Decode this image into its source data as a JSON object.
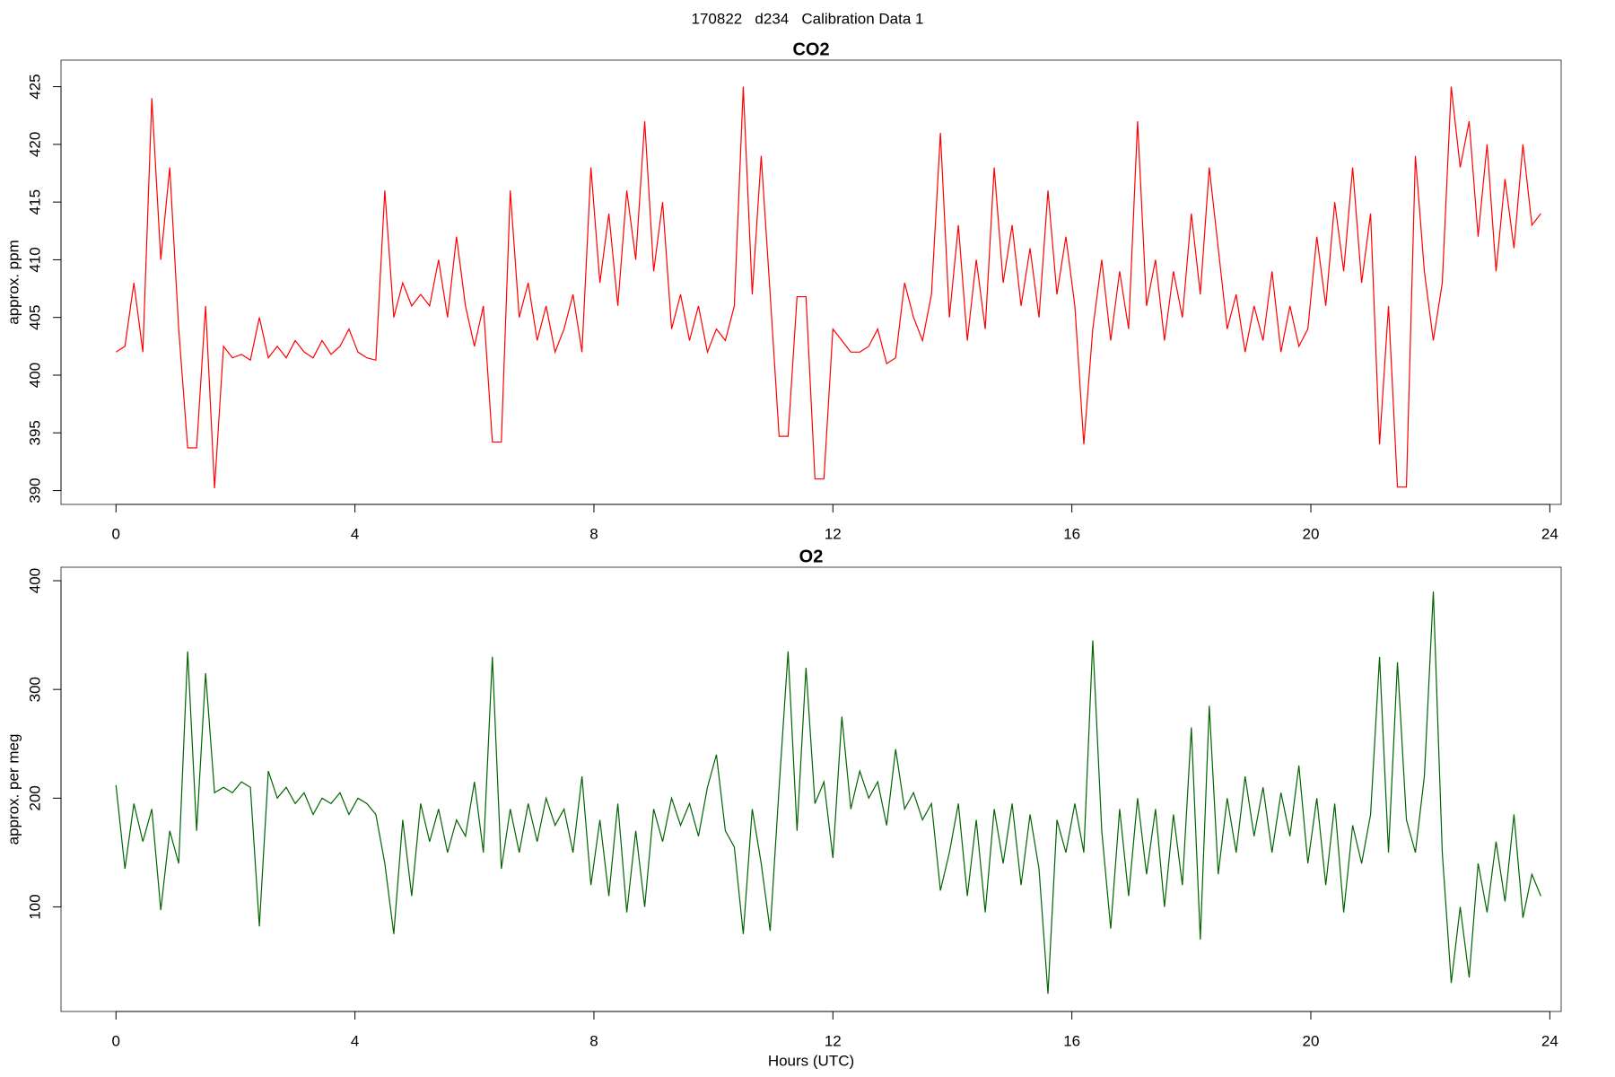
{
  "page_title": "170822   d234   Calibration Data 1",
  "chart_data": [
    {
      "type": "line",
      "title": "CO2",
      "ylabel": "approx. ppm",
      "color": "#ff0000",
      "xlim": [
        -0.92,
        24.19
      ],
      "xticks": [
        0,
        4,
        8,
        12,
        16,
        20,
        24
      ],
      "ylim": [
        388.8,
        427.3
      ],
      "yticks": [
        390,
        395,
        400,
        405,
        410,
        415,
        420,
        425
      ],
      "x": [
        0,
        0.15,
        0.3,
        0.45,
        0.6,
        0.75,
        0.9,
        1.05,
        1.2,
        1.35,
        1.5,
        1.65,
        1.8,
        1.95,
        2.1,
        2.25,
        2.4,
        2.55,
        2.7,
        2.85,
        3,
        3.15,
        3.3,
        3.45,
        3.6,
        3.75,
        3.9,
        4.05,
        4.2,
        4.35,
        4.5,
        4.65,
        4.8,
        4.95,
        5.1,
        5.25,
        5.4,
        5.55,
        5.7,
        5.85,
        6,
        6.15,
        6.3,
        6.45,
        6.6,
        6.75,
        6.9,
        7.05,
        7.2,
        7.35,
        7.5,
        7.65,
        7.8,
        7.95,
        8.1,
        8.25,
        8.4,
        8.55,
        8.7,
        8.85,
        9,
        9.15,
        9.3,
        9.45,
        9.6,
        9.75,
        9.9,
        10.05,
        10.2,
        10.35,
        10.5,
        10.65,
        10.8,
        10.95,
        11.1,
        11.25,
        11.4,
        11.55,
        11.7,
        11.85,
        12,
        12.15,
        12.3,
        12.45,
        12.6,
        12.75,
        12.9,
        13.05,
        13.2,
        13.35,
        13.5,
        13.65,
        13.8,
        13.95,
        14.1,
        14.25,
        14.4,
        14.55,
        14.7,
        14.85,
        15,
        15.15,
        15.3,
        15.45,
        15.6,
        15.75,
        15.9,
        16.05,
        16.2,
        16.35,
        16.5,
        16.65,
        16.8,
        16.95,
        17.1,
        17.25,
        17.4,
        17.55,
        17.7,
        17.85,
        18,
        18.15,
        18.3,
        18.45,
        18.6,
        18.75,
        18.9,
        19.05,
        19.2,
        19.35,
        19.5,
        19.65,
        19.8,
        19.95,
        20.1,
        20.25,
        20.4,
        20.55,
        20.7,
        20.85,
        21,
        21.15,
        21.3,
        21.45,
        21.6,
        21.75,
        21.9,
        22.05,
        22.2,
        22.35,
        22.5,
        22.65,
        22.8,
        22.95,
        23.1,
        23.25,
        23.4,
        23.55,
        23.7,
        23.85
      ],
      "values": [
        402,
        402.5,
        408,
        402,
        424,
        410,
        418,
        404,
        393.7,
        393.7,
        406,
        390.2,
        402.5,
        401.5,
        401.8,
        401.3,
        405,
        401.5,
        402.5,
        401.5,
        403,
        402,
        401.5,
        403,
        401.8,
        402.5,
        404,
        402,
        401.5,
        401.3,
        416,
        405,
        408,
        406,
        407,
        406,
        410,
        405,
        412,
        406,
        402.5,
        406,
        394.2,
        394.2,
        416,
        405,
        408,
        403,
        406,
        402,
        404,
        407,
        402,
        418,
        408,
        414,
        406,
        416,
        410,
        422,
        409,
        415,
        404,
        407,
        403,
        406,
        402,
        404,
        403,
        406,
        425,
        407,
        419,
        407,
        394.7,
        394.7,
        406.8,
        406.8,
        391,
        391,
        404,
        403,
        402,
        402,
        402.5,
        404,
        401,
        401.5,
        408,
        405,
        403,
        407,
        421,
        405,
        413,
        403,
        410,
        404,
        418,
        408,
        413,
        406,
        411,
        405,
        416,
        407,
        412,
        406,
        394,
        404,
        410,
        403,
        409,
        404,
        422,
        406,
        410,
        403,
        409,
        405,
        414,
        407,
        418,
        411,
        404,
        407,
        402,
        406,
        403,
        409,
        402,
        406,
        402.5,
        404,
        412,
        406,
        415,
        409,
        418,
        408,
        414,
        394,
        406,
        390.3,
        390.3,
        419,
        409,
        403,
        408,
        425,
        418,
        422,
        412,
        420,
        409,
        417,
        411,
        420,
        413,
        414
      ]
    },
    {
      "type": "line",
      "title": "O2",
      "ylabel": "approx. per meg",
      "xlabel": "Hours (UTC)",
      "color": "#006400",
      "xlim": [
        -0.92,
        24.19
      ],
      "xticks": [
        0,
        4,
        8,
        12,
        16,
        20,
        24
      ],
      "ylim": [
        3.8,
        412.4
      ],
      "yticks": [
        100,
        200,
        300,
        400
      ],
      "x": [
        0,
        0.15,
        0.3,
        0.45,
        0.6,
        0.75,
        0.9,
        1.05,
        1.2,
        1.35,
        1.5,
        1.65,
        1.8,
        1.95,
        2.1,
        2.25,
        2.4,
        2.55,
        2.7,
        2.85,
        3,
        3.15,
        3.3,
        3.45,
        3.6,
        3.75,
        3.9,
        4.05,
        4.2,
        4.35,
        4.5,
        4.65,
        4.8,
        4.95,
        5.1,
        5.25,
        5.4,
        5.55,
        5.7,
        5.85,
        6,
        6.15,
        6.3,
        6.45,
        6.6,
        6.75,
        6.9,
        7.05,
        7.2,
        7.35,
        7.5,
        7.65,
        7.8,
        7.95,
        8.1,
        8.25,
        8.4,
        8.55,
        8.7,
        8.85,
        9,
        9.15,
        9.3,
        9.45,
        9.6,
        9.75,
        9.9,
        10.05,
        10.2,
        10.35,
        10.5,
        10.65,
        10.8,
        10.95,
        11.1,
        11.25,
        11.4,
        11.55,
        11.7,
        11.85,
        12,
        12.15,
        12.3,
        12.45,
        12.6,
        12.75,
        12.9,
        13.05,
        13.2,
        13.35,
        13.5,
        13.65,
        13.8,
        13.95,
        14.1,
        14.25,
        14.4,
        14.55,
        14.7,
        14.85,
        15,
        15.15,
        15.3,
        15.45,
        15.6,
        15.75,
        15.9,
        16.05,
        16.2,
        16.35,
        16.5,
        16.65,
        16.8,
        16.95,
        17.1,
        17.25,
        17.4,
        17.55,
        17.7,
        17.85,
        18,
        18.15,
        18.3,
        18.45,
        18.6,
        18.75,
        18.9,
        19.05,
        19.2,
        19.35,
        19.5,
        19.65,
        19.8,
        19.95,
        20.1,
        20.25,
        20.4,
        20.55,
        20.7,
        20.85,
        21,
        21.15,
        21.3,
        21.45,
        21.6,
        21.75,
        21.9,
        22.05,
        22.2,
        22.35,
        22.5,
        22.65,
        22.8,
        22.95,
        23.1,
        23.25,
        23.4,
        23.55,
        23.7,
        23.85
      ],
      "values": [
        212,
        135,
        195,
        160,
        190,
        97,
        170,
        140,
        335,
        170,
        315,
        205,
        210,
        205,
        215,
        210,
        82,
        225,
        200,
        210,
        195,
        205,
        185,
        200,
        195,
        205,
        185,
        200,
        195,
        185,
        140,
        75,
        180,
        110,
        195,
        160,
        190,
        150,
        180,
        165,
        215,
        150,
        330,
        135,
        190,
        150,
        195,
        160,
        200,
        175,
        190,
        150,
        220,
        120,
        180,
        110,
        195,
        95,
        170,
        100,
        190,
        160,
        200,
        175,
        195,
        165,
        210,
        240,
        170,
        155,
        75,
        190,
        140,
        78,
        210,
        335,
        170,
        320,
        195,
        215,
        145,
        275,
        190,
        225,
        200,
        215,
        175,
        245,
        190,
        205,
        180,
        195,
        115,
        150,
        195,
        110,
        180,
        95,
        190,
        140,
        195,
        120,
        185,
        135,
        20,
        180,
        150,
        195,
        150,
        345,
        170,
        80,
        190,
        110,
        200,
        130,
        190,
        100,
        185,
        120,
        265,
        70,
        285,
        130,
        200,
        150,
        220,
        165,
        210,
        150,
        205,
        165,
        230,
        140,
        200,
        120,
        195,
        95,
        175,
        140,
        185,
        330,
        150,
        325,
        180,
        150,
        220,
        390,
        150,
        30,
        100,
        35,
        140,
        95,
        160,
        105,
        185,
        90,
        130,
        110
      ]
    }
  ]
}
